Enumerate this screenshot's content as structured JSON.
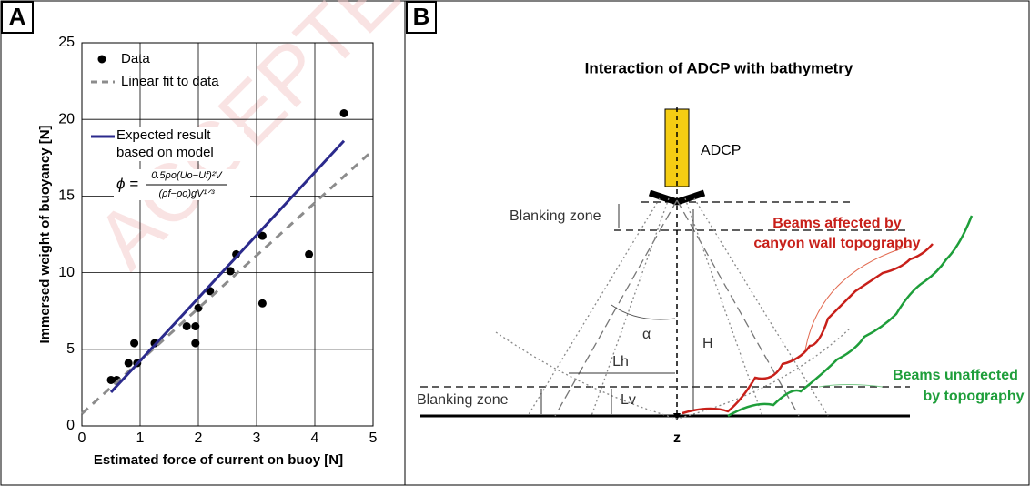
{
  "panel_labels": [
    "A",
    "B"
  ],
  "watermark": "ACCEPTED",
  "chart_data": {
    "type": "scatter",
    "xlabel": "Estimated force of current on buoy [N]",
    "ylabel": "Immersed weight of buoyancy [N]",
    "xlim": [
      0,
      5
    ],
    "xticks": [
      0,
      1,
      2,
      3,
      4,
      5
    ],
    "ylim": [
      0,
      25
    ],
    "yticks": [
      0,
      5,
      10,
      15,
      20,
      25
    ],
    "grid": true,
    "series": [
      {
        "name": "Data",
        "kind": "points",
        "color": "#000000",
        "x": [
          0.5,
          0.6,
          0.8,
          0.9,
          0.95,
          1.25,
          1.8,
          1.95,
          1.95,
          2.0,
          2.2,
          2.55,
          2.65,
          3.1,
          3.1,
          3.9,
          4.5
        ],
        "values": [
          3,
          3,
          4.1,
          5.4,
          4.1,
          5.4,
          6.5,
          5.4,
          6.5,
          7.7,
          8.8,
          10.1,
          11.2,
          12.4,
          8,
          11.2,
          20.4
        ]
      },
      {
        "name": "Linear fit to data",
        "kind": "dashed",
        "color": "#8c8c8c",
        "x": [
          0,
          5
        ],
        "values": [
          0.8,
          18
        ]
      },
      {
        "name": "Expected result based on model",
        "kind": "solid",
        "color": "#2b2a8c",
        "x": [
          0.5,
          4.5
        ],
        "values": [
          2.2,
          18.6
        ]
      }
    ],
    "formula": {
      "lhs": "ϕ =",
      "numerator": "0.5ρo(Uo−Uf)²V",
      "denominator": "(ρf−ρo)gV¹ᐟ³"
    }
  },
  "diagram": {
    "title": "Interaction of ADCP with bathymetry",
    "labels": {
      "adcp": "ADCP",
      "blanking_top": "Blanking zone",
      "blanking_bottom": "Blanking zone",
      "affected": [
        "Beams affected by",
        "canyon wall topography"
      ],
      "unaffected": [
        "Beams unaffected",
        "by topography"
      ],
      "alpha": "α",
      "h": "H",
      "lh": "Lh",
      "lv": "Lv",
      "z": "z"
    }
  }
}
